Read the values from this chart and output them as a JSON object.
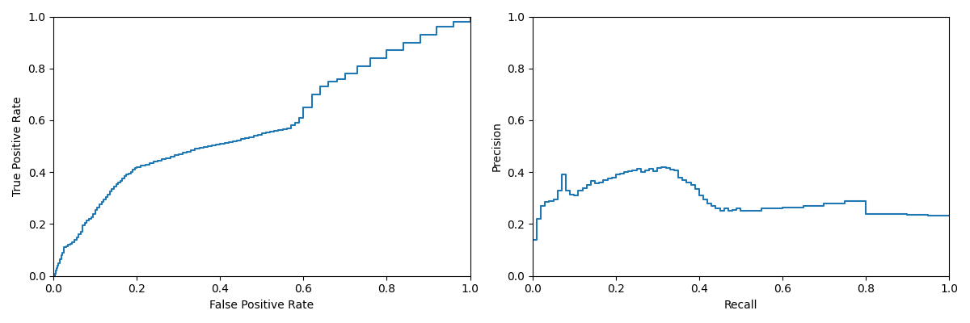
{
  "roc_fpr": [
    0.0,
    0.0,
    0.01,
    0.01,
    0.02,
    0.02,
    0.03,
    0.03,
    0.04,
    0.04,
    0.05,
    0.05,
    0.06,
    0.06,
    0.07,
    0.08,
    0.08,
    0.09,
    0.09,
    0.1,
    0.1,
    0.11,
    0.12,
    0.12,
    0.13,
    0.14,
    0.15,
    0.16,
    0.17,
    0.18,
    0.19,
    0.2,
    0.21,
    0.22,
    0.23,
    0.24,
    0.25,
    0.26,
    0.27,
    0.28,
    0.29,
    0.3,
    0.31,
    0.32,
    0.33,
    0.34,
    0.35,
    0.36,
    0.37,
    0.38,
    0.39,
    0.4,
    0.41,
    0.42,
    0.43,
    0.44,
    0.45,
    0.46,
    0.47,
    0.48,
    0.49,
    0.5,
    0.51,
    0.52,
    0.53,
    0.54,
    0.55,
    0.56,
    0.57,
    0.58,
    0.59,
    0.6,
    0.61,
    0.63,
    0.65,
    0.68,
    0.72,
    0.76,
    0.8,
    0.85,
    0.9,
    0.95,
    1.0
  ],
  "roc_tpr": [
    0.0,
    0.02,
    0.02,
    0.04,
    0.04,
    0.06,
    0.06,
    0.08,
    0.08,
    0.1,
    0.1,
    0.11,
    0.11,
    0.12,
    0.12,
    0.12,
    0.13,
    0.13,
    0.22,
    0.22,
    0.25,
    0.25,
    0.25,
    0.27,
    0.27,
    0.29,
    0.29,
    0.3,
    0.3,
    0.31,
    0.31,
    0.33,
    0.33,
    0.36,
    0.36,
    0.38,
    0.38,
    0.4,
    0.4,
    0.41,
    0.41,
    0.42,
    0.42,
    0.43,
    0.43,
    0.44,
    0.44,
    0.45,
    0.45,
    0.46,
    0.46,
    0.47,
    0.47,
    0.48,
    0.48,
    0.49,
    0.49,
    0.5,
    0.5,
    0.51,
    0.51,
    0.52,
    0.52,
    0.53,
    0.53,
    0.54,
    0.54,
    0.545,
    0.545,
    0.555,
    0.555,
    0.6,
    0.6,
    0.65,
    0.7,
    0.74,
    0.78,
    0.82,
    0.86,
    0.9,
    0.94,
    0.97,
    1.0
  ],
  "pr_recall": [
    0.0,
    0.01,
    0.02,
    0.03,
    0.04,
    0.05,
    0.06,
    0.07,
    0.08,
    0.09,
    0.1,
    0.11,
    0.12,
    0.13,
    0.14,
    0.15,
    0.16,
    0.17,
    0.18,
    0.19,
    0.2,
    0.21,
    0.22,
    0.23,
    0.24,
    0.25,
    0.26,
    0.27,
    0.28,
    0.29,
    0.3,
    0.31,
    0.32,
    0.33,
    0.34,
    0.35,
    0.36,
    0.37,
    0.38,
    0.39,
    0.4,
    0.41,
    0.42,
    0.43,
    0.44,
    0.45,
    0.46,
    0.47,
    0.48,
    0.49,
    0.5,
    0.55,
    0.6,
    0.65,
    0.7,
    0.75,
    0.8,
    0.85,
    0.9,
    0.95,
    1.0
  ],
  "pr_precision": [
    0.14,
    0.22,
    0.27,
    0.29,
    0.28,
    0.29,
    0.33,
    0.39,
    0.33,
    0.32,
    0.31,
    0.33,
    0.34,
    0.35,
    0.37,
    0.36,
    0.36,
    0.37,
    0.37,
    0.38,
    0.39,
    0.4,
    0.4,
    0.41,
    0.41,
    0.42,
    0.4,
    0.41,
    0.41,
    0.4,
    0.41,
    0.42,
    0.41,
    0.4,
    0.4,
    0.38,
    0.37,
    0.36,
    0.35,
    0.33,
    0.31,
    0.3,
    0.28,
    0.27,
    0.26,
    0.25,
    0.26,
    0.25,
    0.25,
    0.26,
    0.25,
    0.26,
    0.26,
    0.27,
    0.28,
    0.29,
    0.24,
    0.24,
    0.24,
    0.23,
    0.23
  ],
  "line_color": "#1f77b4",
  "roc_xlabel": "False Positive Rate",
  "roc_ylabel": "True Positive Rate",
  "pr_xlabel": "Recall",
  "pr_ylabel": "Precision",
  "xlim": [
    0.0,
    1.0
  ],
  "ylim": [
    0.0,
    1.0
  ],
  "figsize": [
    12.0,
    4.0
  ],
  "dpi": 100
}
